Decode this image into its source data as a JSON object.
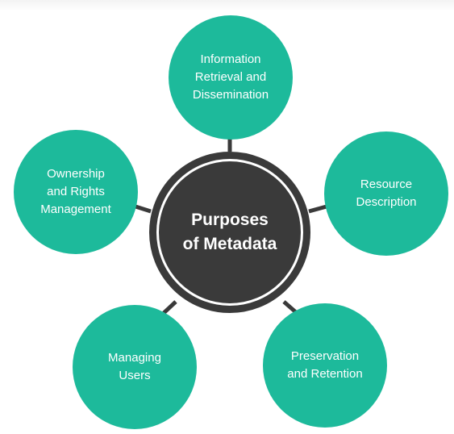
{
  "colors": {
    "node_fill": "#1dba9b",
    "hub_fill": "#3a3a3a",
    "connector": "#3a3a3a"
  },
  "diagram": {
    "center": {
      "label": "Purposes\nof Metadata"
    },
    "nodes": [
      {
        "id": "information-retrieval",
        "label": "Information\nRetrieval and\nDissemination"
      },
      {
        "id": "resource-description",
        "label": "Resource\nDescription"
      },
      {
        "id": "preservation-retention",
        "label": "Preservation\nand Retention"
      },
      {
        "id": "managing-users",
        "label": "Managing\nUsers"
      },
      {
        "id": "ownership-rights",
        "label": "Ownership\nand Rights\nManagement"
      }
    ]
  }
}
